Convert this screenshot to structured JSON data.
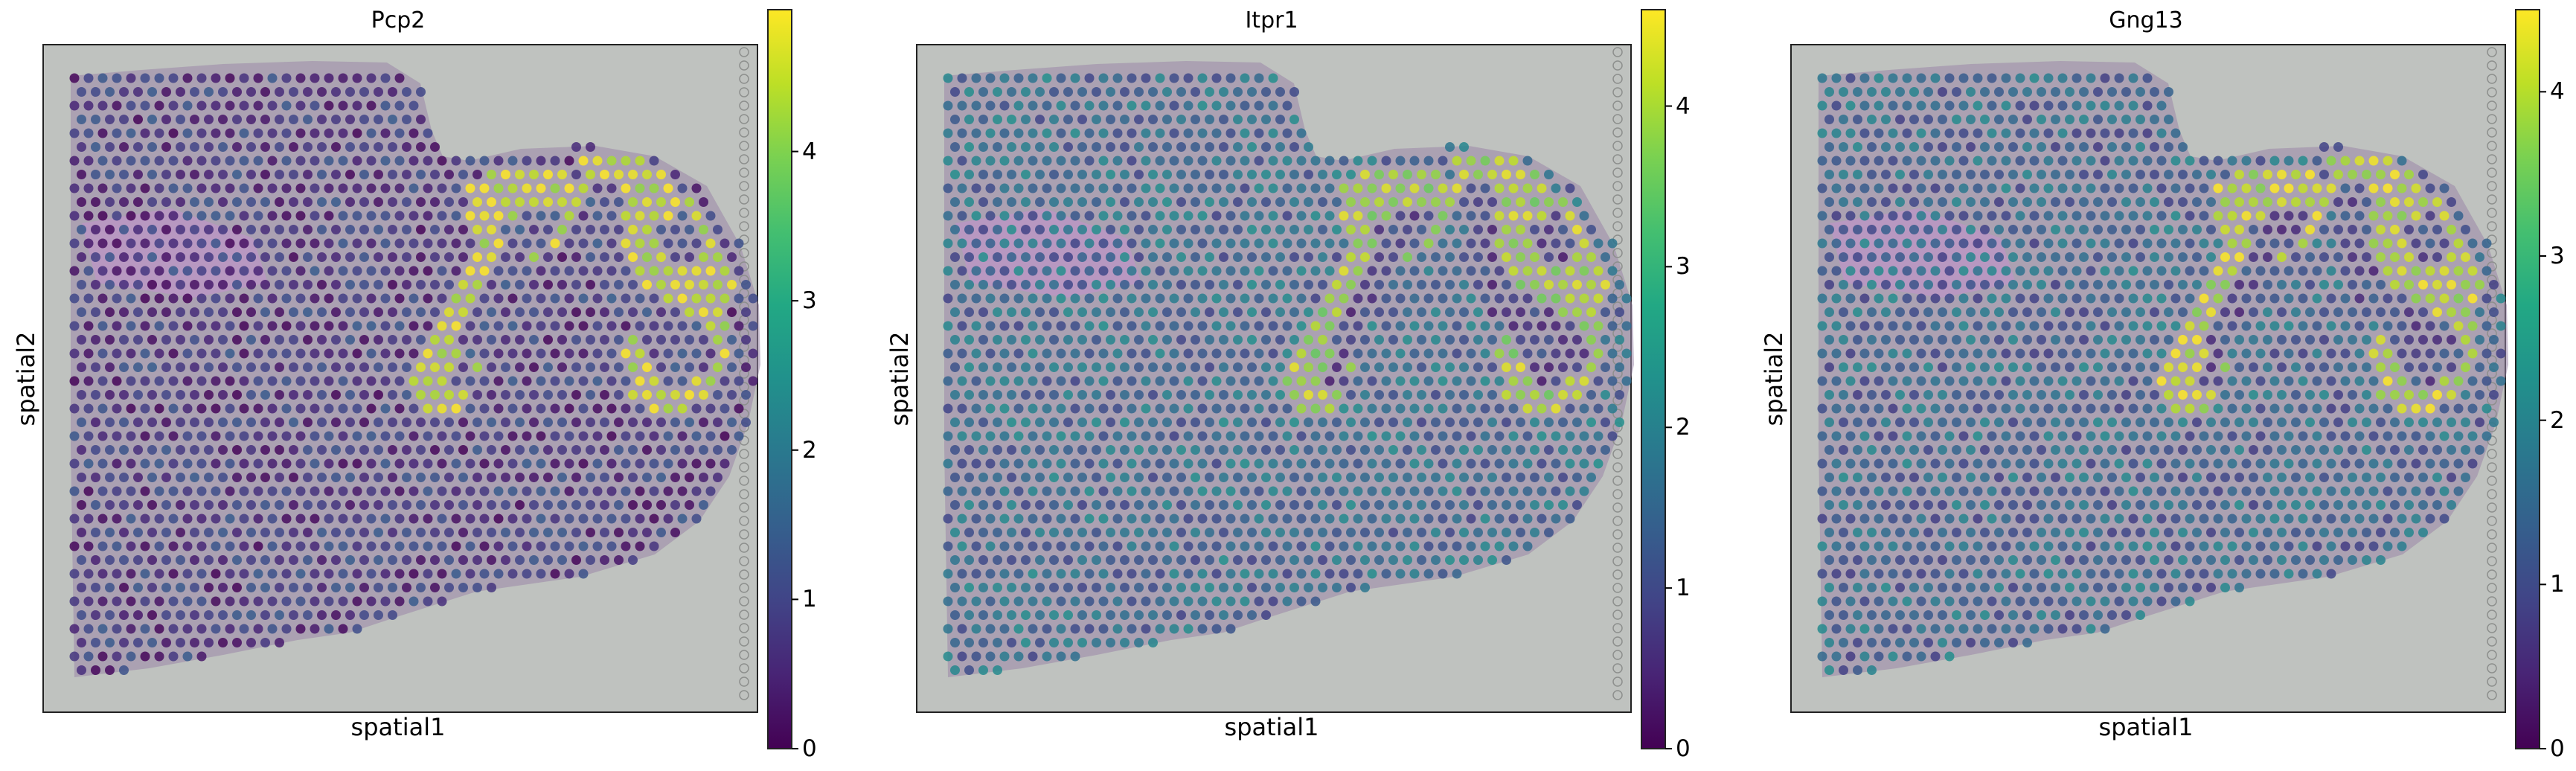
{
  "chart_data": [
    {
      "type": "heatmap",
      "title": "Pcp2",
      "xlabel": "spatial1",
      "ylabel": "spatial2",
      "colormap": "viridis",
      "colorbar": {
        "ticks": [
          0,
          1,
          2,
          3,
          4
        ],
        "range": [
          0,
          4.95
        ]
      },
      "high_region_value": 4.6,
      "layer_value": 1.0,
      "background_value": 0.45
    },
    {
      "type": "heatmap",
      "title": "Itpr1",
      "xlabel": "spatial1",
      "ylabel": "spatial2",
      "colormap": "viridis",
      "colorbar": {
        "ticks": [
          0,
          1,
          2,
          3,
          4
        ],
        "range": [
          0,
          4.6
        ]
      },
      "high_region_value": 4.0,
      "layer_value": 0.8,
      "background_value": 1.3
    },
    {
      "type": "heatmap",
      "title": "Gng13",
      "xlabel": "spatial1",
      "ylabel": "spatial2",
      "colormap": "viridis",
      "colorbar": {
        "ticks": [
          0,
          1,
          2,
          3,
          4
        ],
        "range": [
          0,
          4.5
        ]
      },
      "high_region_value": 4.1,
      "layer_value": 0.9,
      "background_value": 1.2
    }
  ]
}
